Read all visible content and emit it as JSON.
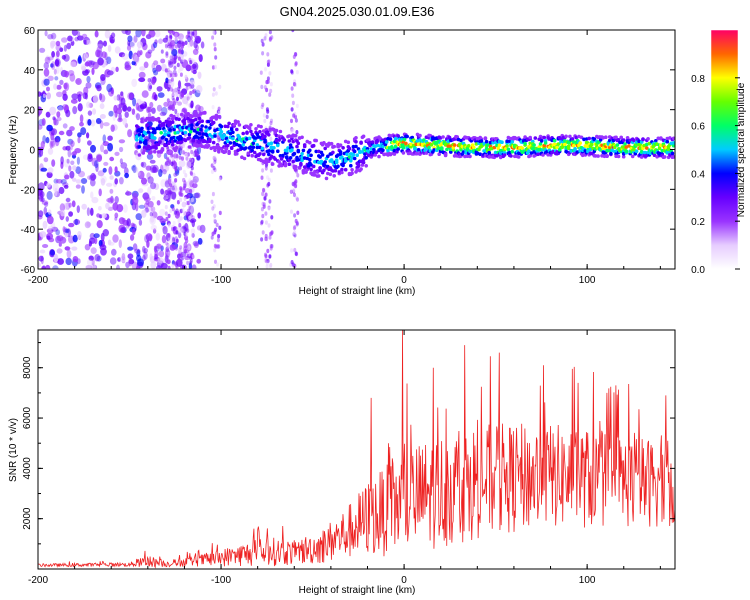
{
  "title": "GN04.2025.030.01.09.E36",
  "chart_data": [
    {
      "type": "heatmap",
      "xlabel": "Height of straight line (km)",
      "ylabel": "Frequency (Hz)",
      "xlim": [
        -200,
        148
      ],
      "ylim": [
        -60,
        60
      ],
      "xticks": [
        -200,
        -100,
        0,
        100
      ],
      "yticks": [
        -60,
        -40,
        -20,
        0,
        20,
        40,
        60
      ],
      "colorbar": {
        "label": "Normalized spectral amplitude",
        "range": [
          0,
          1
        ],
        "ticks": [
          "0.0",
          "0.2",
          "0.4",
          "0.6",
          "0.8"
        ],
        "colormap": [
          "#ffffff",
          "#e6ccff",
          "#9933ff",
          "#6600ff",
          "#0000ff",
          "#00ccff",
          "#00ff66",
          "#66ff00",
          "#ffff00",
          "#ff6600",
          "#ff0066"
        ]
      },
      "ridge": {
        "x": [
          -145,
          -130,
          -110,
          -90,
          -70,
          -50,
          -40,
          -30,
          -20,
          -10,
          0,
          20,
          40,
          60,
          80,
          100,
          120,
          148
        ],
        "y": [
          6,
          8,
          10,
          5,
          1,
          -4,
          -6,
          -4,
          0,
          2,
          3,
          2,
          1,
          1,
          2,
          2,
          1,
          1
        ]
      }
    },
    {
      "type": "line",
      "xlabel": "Height of straight line (km)",
      "ylabel": "SNR (10 * v/v)",
      "xlim": [
        -200,
        148
      ],
      "ylim": [
        0,
        9500
      ],
      "xticks": [
        -200,
        -100,
        0,
        100
      ],
      "yticks": [
        2000,
        4000,
        6000,
        8000
      ],
      "color": "#ee2222",
      "envelope": {
        "x": [
          -200,
          -150,
          -140,
          -130,
          -110,
          -90,
          -75,
          -60,
          -45,
          -30,
          -20,
          -10,
          0,
          10,
          20,
          30,
          40,
          60,
          80,
          100,
          120,
          148
        ],
        "base": [
          150,
          180,
          300,
          200,
          350,
          550,
          700,
          650,
          900,
          1500,
          2000,
          2300,
          2700,
          2900,
          3100,
          3300,
          3500,
          3600,
          3700,
          3600,
          3500,
          3400
        ],
        "spread": [
          60,
          80,
          250,
          120,
          250,
          450,
          600,
          500,
          700,
          1100,
          1500,
          1800,
          2100,
          2200,
          2300,
          2300,
          2300,
          2200,
          2100,
          2000,
          1900,
          1700
        ]
      },
      "peaks": [
        {
          "x": -1,
          "y": 9500
        },
        {
          "x": 33,
          "y": 8900
        },
        {
          "x": 52,
          "y": 8600
        },
        {
          "x": 76,
          "y": 8100
        },
        {
          "x": 16,
          "y": 8000
        },
        {
          "x": 95,
          "y": 7400
        },
        {
          "x": 143,
          "y": 6900
        },
        {
          "x": -18,
          "y": 6800
        }
      ]
    }
  ]
}
